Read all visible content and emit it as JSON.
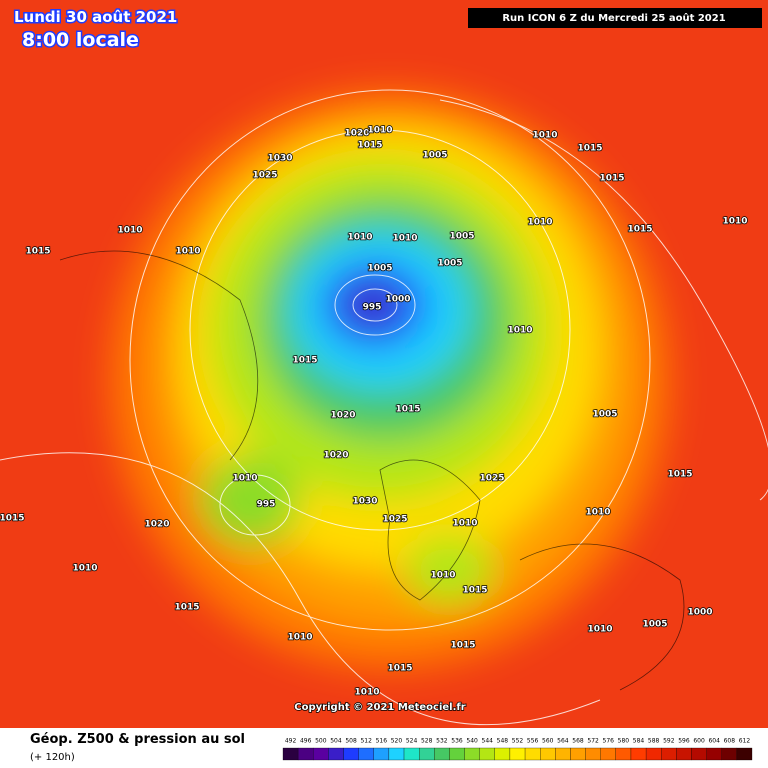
{
  "header": {
    "date": "Lundi 30 août 2021",
    "time": "8:00 locale",
    "run": "Run ICON 6 Z du Mercredi 25 août 2021"
  },
  "copyright": "Copyright © 2021 Meteociel.fr",
  "legend": {
    "title": "Géop. Z500 & pression au sol",
    "subtitle": "(+ 120h)",
    "ticks": [
      492,
      496,
      500,
      504,
      508,
      512,
      516,
      520,
      524,
      528,
      532,
      536,
      540,
      544,
      548,
      552,
      556,
      560,
      564,
      568,
      572,
      576,
      580,
      584,
      588,
      592,
      596,
      600,
      604,
      608,
      612
    ],
    "colors": [
      "#2a0040",
      "#4b0082",
      "#5a00a0",
      "#3a1ec8",
      "#1e3cff",
      "#1e6eff",
      "#1ea0ff",
      "#1ed2ff",
      "#1ee6c8",
      "#32d296",
      "#46c864",
      "#64d23c",
      "#8cdc28",
      "#b4e614",
      "#dcf000",
      "#fff000",
      "#ffdc00",
      "#ffc800",
      "#ffb400",
      "#ffa000",
      "#ff8c00",
      "#ff7800",
      "#ff5a00",
      "#ff3c00",
      "#f02800",
      "#dc1e00",
      "#c81400",
      "#b40a00",
      "#960000",
      "#6e0000",
      "#3c0000"
    ]
  },
  "isobars": [
    "1030",
    "1025",
    "1020",
    "1010",
    "1015",
    "1005",
    "1010",
    "1015",
    "1015",
    "1010",
    "1010",
    "1010",
    "1005",
    "1005",
    "1005",
    "995",
    "1000",
    "1010",
    "1015",
    "1020",
    "1015",
    "1020",
    "1025",
    "1030",
    "1025",
    "1010",
    "995",
    "1010",
    "1020",
    "1010",
    "1015",
    "1015",
    "1010",
    "1015",
    "1015",
    "1010",
    "1010",
    "1005",
    "1000",
    "1015",
    "1010",
    "1015",
    "1010",
    "1010",
    "1015",
    "1010",
    "1005",
    "1010",
    "1015"
  ]
}
